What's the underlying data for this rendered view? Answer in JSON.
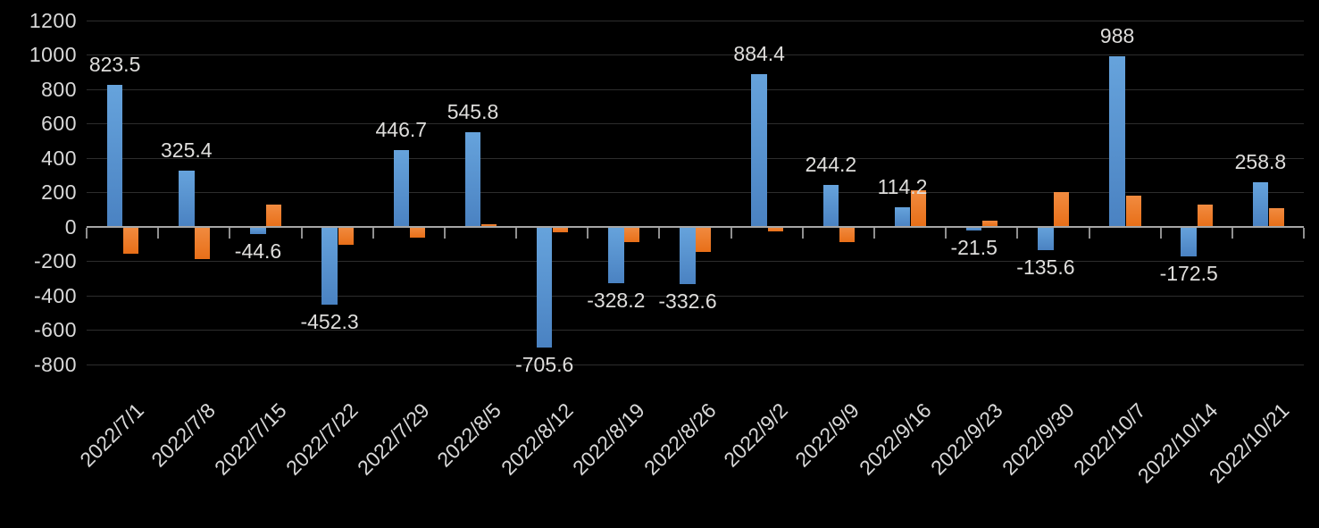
{
  "chart_data": {
    "type": "bar",
    "title": "",
    "xlabel": "",
    "ylabel": "",
    "legend_position": "none",
    "grid": true,
    "background_color": "#000000",
    "categories": [
      "2022/7/1",
      "2022/7/8",
      "2022/7/15",
      "2022/7/22",
      "2022/7/29",
      "2022/8/5",
      "2022/8/12",
      "2022/8/19",
      "2022/8/26",
      "2022/9/2",
      "2022/9/9",
      "2022/9/16",
      "2022/9/23",
      "2022/9/30",
      "2022/10/7",
      "2022/10/14",
      "2022/10/21"
    ],
    "series": [
      {
        "name": "blue-series",
        "color": "#5b9bd5",
        "values": [
          823.5,
          325.4,
          -44.6,
          -452.3,
          446.7,
          545.8,
          -705.6,
          -328.2,
          -332.6,
          884.4,
          244.2,
          114.2,
          -21.5,
          -135.6,
          988,
          -172.5,
          258.8
        ],
        "data_labels": [
          "823.5",
          "325.4",
          "-44.6",
          "-452.3",
          "446.7",
          "545.8",
          "-705.6",
          "-328.2",
          "-332.6",
          "884.4",
          "244.2",
          "114.2",
          "-21.5",
          "-135.6",
          "988",
          "-172.5",
          "258.8"
        ]
      },
      {
        "name": "orange-series",
        "color": "#ed7d31",
        "values": [
          -160,
          -190,
          130,
          -105,
          -65,
          15,
          -35,
          -90,
          -150,
          -30,
          -90,
          210,
          35,
          200,
          180,
          130,
          105
        ],
        "data_labels": null
      }
    ],
    "y_axis": {
      "min": -800,
      "max": 1200,
      "step": 200,
      "tick_labels": [
        "1200",
        "1000",
        "800",
        "600",
        "400",
        "200",
        "0",
        "-200",
        "-400",
        "-600",
        "-800"
      ]
    },
    "x_axis": {
      "label_rotation_deg": 45,
      "tick_marks": "between-categories"
    }
  },
  "colors": {
    "background": "#000000",
    "gridline": "#2d2d2d",
    "axis_line": "#a6a6a6",
    "text": "#d9d9d9",
    "blue_bar": "#5b9bd5",
    "orange_bar": "#ed7d31"
  }
}
